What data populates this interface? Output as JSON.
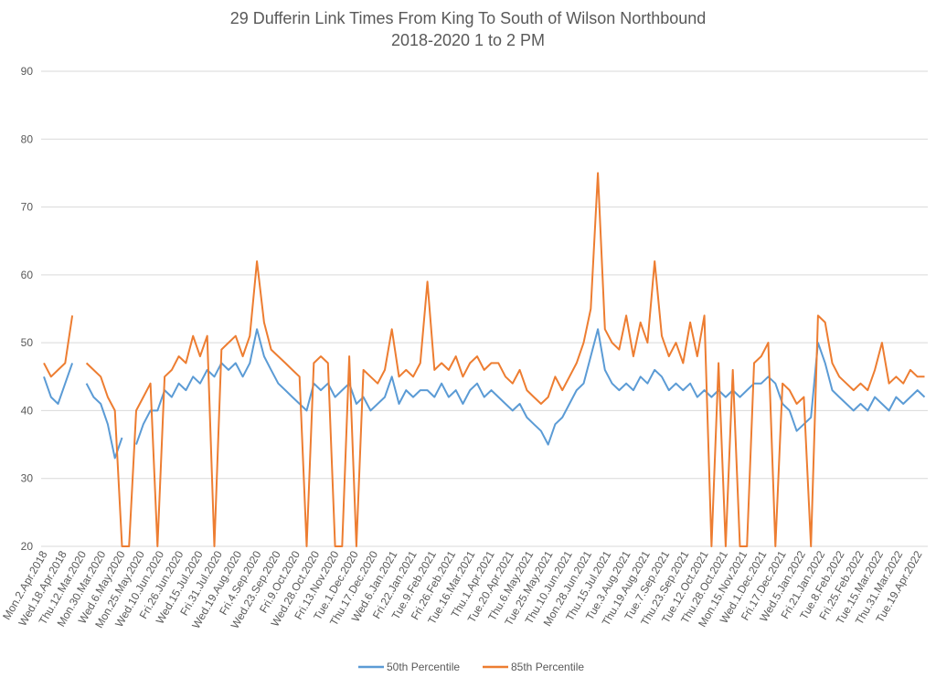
{
  "chart_data": {
    "type": "line",
    "title": "29 Dufferin Link Times From King To South of Wilson Northbound",
    "subtitle": "2018-2020 1 to 2 PM",
    "xlabel": "",
    "ylabel": "",
    "ylim": [
      20,
      90
    ],
    "yticks": [
      20,
      30,
      40,
      50,
      60,
      70,
      80,
      90
    ],
    "grid": true,
    "legend_position": "bottom",
    "tick_every": 3,
    "x_tick_labels": [
      "Mon.2.Apr.2018",
      "Wed.18.Apr.2018",
      "Thu.12.Mar.2020",
      "Mon.30.Mar.2020",
      "Wed.6.May.2020",
      "Mon.25.May.2020",
      "Wed.10.Jun.2020",
      "Fri.26.Jun.2020",
      "Wed.15.Jul.2020",
      "Fri.31.Jul.2020",
      "Wed.19.Aug.2020",
      "Fri.4.Sep.2020",
      "Wed.23.Sep.2020",
      "Fri.9.Oct.2020",
      "Wed.28.Oct.2020",
      "Fri.13.Nov.2020",
      "Tue.1.Dec.2020",
      "Thu.17.Dec.2020",
      "Wed.6.Jan.2021",
      "Fri.22.Jan.2021",
      "Tue.9.Feb.2021",
      "Fri.26.Feb.2021",
      "Tue.16.Mar.2021",
      "Thu.1.Apr.2021",
      "Tue.20.Apr.2021",
      "Thu.6.May.2021",
      "Tue.25.May.2021",
      "Thu.10.Jun.2021",
      "Mon.28.Jun.2021",
      "Thu.15.Jul.2021",
      "Tue.3.Aug.2021",
      "Thu.19.Aug.2021",
      "Tue.7.Sep.2021",
      "Thu.23.Sep.2021",
      "Tue.12.Oct.2021",
      "Thu.28.Oct.2021",
      "Mon.15.Nov.2021",
      "Wed.1.Dec.2021",
      "Fri.17.Dec.2021",
      "Wed.5.Jan.2022",
      "Fri.21.Jan.2022",
      "Tue.8.Feb.2022",
      "Fri.25.Feb.2022",
      "Tue.15.Mar.2022",
      "Thu.31.Mar.2022",
      "Tue.19.Apr.2022"
    ],
    "series": [
      {
        "name": "50th Percentile",
        "color": "#5B9BD5",
        "values": [
          45,
          42,
          41,
          44,
          47,
          null,
          44,
          42,
          41,
          38,
          33,
          36,
          null,
          35,
          38,
          40,
          40,
          43,
          42,
          44,
          43,
          45,
          44,
          46,
          45,
          47,
          46,
          47,
          45,
          47,
          52,
          48,
          46,
          44,
          43,
          42,
          41,
          40,
          44,
          43,
          44,
          42,
          43,
          44,
          41,
          42,
          40,
          41,
          42,
          45,
          41,
          43,
          42,
          43,
          43,
          42,
          44,
          42,
          43,
          41,
          43,
          44,
          42,
          43,
          42,
          41,
          40,
          41,
          39,
          38,
          37,
          35,
          38,
          39,
          41,
          43,
          44,
          48,
          52,
          46,
          44,
          43,
          44,
          43,
          45,
          44,
          46,
          45,
          43,
          44,
          43,
          44,
          42,
          43,
          42,
          43,
          42,
          43,
          42,
          43,
          44,
          44,
          45,
          44,
          41,
          40,
          37,
          38,
          39,
          50,
          47,
          43,
          42,
          41,
          40,
          41,
          40,
          42,
          41,
          40,
          42,
          41,
          42,
          43,
          42
        ]
      },
      {
        "name": "85th Percentile",
        "color": "#ED7D31",
        "values": [
          47,
          45,
          46,
          47,
          54,
          null,
          47,
          46,
          45,
          42,
          40,
          20,
          20,
          40,
          42,
          44,
          20,
          45,
          46,
          48,
          47,
          51,
          48,
          51,
          20,
          49,
          50,
          51,
          48,
          51,
          62,
          53,
          49,
          48,
          47,
          46,
          45,
          20,
          47,
          48,
          47,
          20,
          20,
          48,
          20,
          46,
          45,
          44,
          46,
          52,
          45,
          46,
          45,
          47,
          59,
          46,
          47,
          46,
          48,
          45,
          47,
          48,
          46,
          47,
          47,
          45,
          44,
          46,
          43,
          42,
          41,
          42,
          45,
          43,
          45,
          47,
          50,
          55,
          75,
          52,
          50,
          49,
          54,
          48,
          53,
          50,
          62,
          51,
          48,
          50,
          47,
          53,
          48,
          54,
          20,
          47,
          20,
          46,
          20,
          20,
          47,
          48,
          50,
          20,
          44,
          43,
          41,
          42,
          20,
          54,
          53,
          47,
          45,
          44,
          43,
          44,
          43,
          46,
          50,
          44,
          45,
          44,
          46,
          45,
          45
        ]
      }
    ]
  }
}
